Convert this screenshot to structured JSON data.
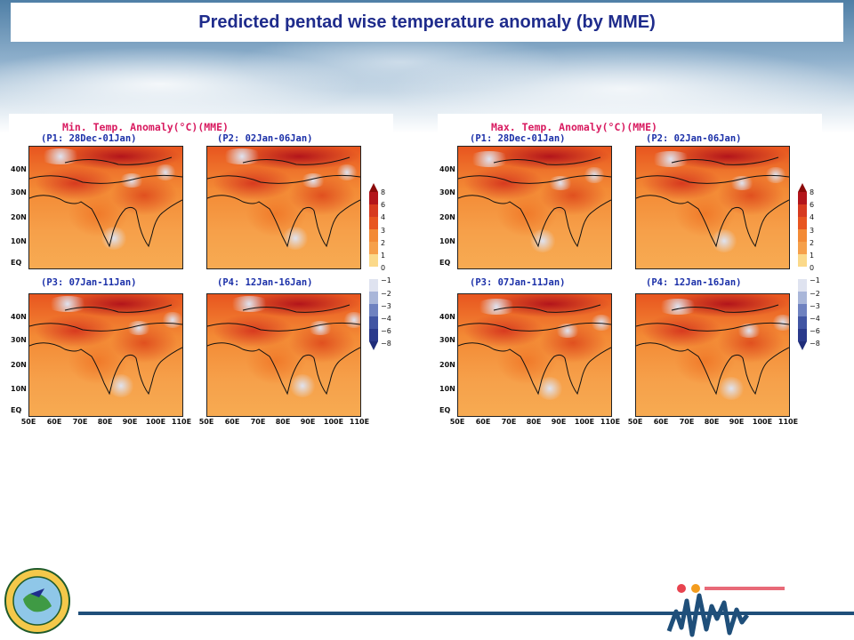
{
  "slide": {
    "title": "Predicted pentad wise temperature anomaly (by MME)"
  },
  "figures": [
    {
      "title": "Min. Temp. Anomaly(°C)(MME)",
      "panels": [
        "(P1: 28Dec-01Jan)",
        "(P2: 02Jan-06Jan)",
        "(P3: 07Jan-11Jan)",
        "(P4: 12Jan-16Jan)"
      ]
    },
    {
      "title": "Max. Temp. Anomaly(°C)(MME)",
      "panels": [
        "(P1: 28Dec-01Jan)",
        "(P2: 02Jan-06Jan)",
        "(P3: 07Jan-11Jan)",
        "(P4: 12Jan-16Jan)"
      ]
    }
  ],
  "axes": {
    "lat_ticks": [
      "40N",
      "30N",
      "20N",
      "10N",
      "EQ"
    ],
    "lon_ticks": [
      "50E",
      "60E",
      "70E",
      "80E",
      "90E",
      "100E",
      "110E"
    ]
  },
  "colorbar": {
    "levels": [
      "8",
      "6",
      "4",
      "3",
      "2",
      "1",
      "0",
      "−1",
      "−2",
      "−3",
      "−4",
      "−6",
      "−8"
    ],
    "colors": [
      "#8b0a0a",
      "#b3151b",
      "#d73a1f",
      "#e8551f",
      "#f38a35",
      "#f6a04a",
      "#fbd98a",
      "#ffffff",
      "#dfe3f0",
      "#a9b6d9",
      "#6f82c0",
      "#4155a3",
      "#2a3a8c",
      "#1f2d7a"
    ]
  },
  "theme": {
    "title_color": "#1f2c8c",
    "figure_title_color": "#d81b60",
    "panel_label_color": "#1a2fa8",
    "footer_line_color": "#1f4f7a"
  }
}
